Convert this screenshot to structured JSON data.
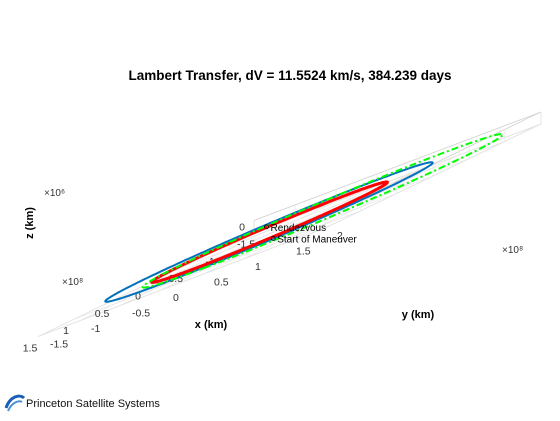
{
  "chart_data": {
    "type": "line",
    "title": "Lambert Transfer, dV = 11.5524 km/s, 384.239 days",
    "xlabel": "x (km)",
    "ylabel": "y (km)",
    "zlabel": "z (km)",
    "x_exponent": "×10⁸",
    "y_exponent": "×10⁸",
    "z_exponent": "×10⁶",
    "xlim": [
      -1.5,
      1.5
    ],
    "ylim": [
      -1.5,
      2
    ],
    "zlim": [
      -1,
      1
    ],
    "xticks": [
      "-1.5",
      "-1",
      "-0.5",
      "0",
      "0.5",
      "1",
      "1.5"
    ],
    "yticks": [
      "-1.5",
      "-1",
      "-0.5",
      "0",
      "0.5",
      "1",
      "1.5",
      "2"
    ],
    "zticks": [
      "0"
    ],
    "grid": true,
    "series": [
      {
        "style": "solid",
        "color": "#0072BD",
        "a": 1.5,
        "b": 1.5,
        "xc": 0,
        "yc": 0
      },
      {
        "style": "solid",
        "color": "#FF0000",
        "a": 1.08,
        "b": 1.08,
        "xc": 0.05,
        "yc": 0.05
      },
      {
        "style": "dashdot",
        "color": "#00FF00",
        "a": 1.65,
        "b": 1.65,
        "xc": -0.12,
        "yc": 0.55
      }
    ],
    "annotations": [
      {
        "text": "Rendezvous",
        "x": -0.82,
        "y": -0.75,
        "z": 0
      },
      {
        "text": "Start of Maneuver",
        "x": 1.08,
        "y": 1.0,
        "z": 0
      }
    ]
  },
  "branding": {
    "logo_text": "Princeton Satellite Systems"
  }
}
